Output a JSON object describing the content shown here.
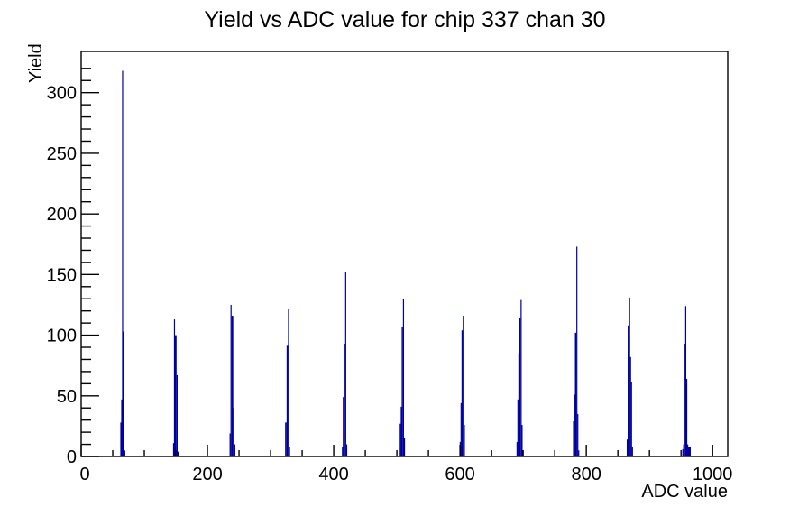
{
  "title": "Yield vs ADC value for chip 337 chan 30",
  "chart_data": {
    "type": "bar",
    "title": "Yield vs ADC value for chip 337 chan 30",
    "xlabel": "ADC value",
    "ylabel": "Yield",
    "xlim": [
      0,
      1024
    ],
    "ylim": [
      0,
      334
    ],
    "x_major_ticks": [
      0,
      200,
      400,
      600,
      800,
      1000
    ],
    "x_minor_tick_step": 50,
    "y_major_ticks": [
      0,
      50,
      100,
      150,
      200,
      250,
      300
    ],
    "y_minor_tick_step": 10,
    "grid": false,
    "legend": false,
    "bar_color": "#0000a0",
    "frame_color": "#000000",
    "peaks_summary": [
      {
        "center": 65,
        "max_height": 318
      },
      {
        "center": 148,
        "max_height": 113
      },
      {
        "center": 238,
        "max_height": 125
      },
      {
        "center": 328,
        "max_height": 122
      },
      {
        "center": 418,
        "max_height": 152
      },
      {
        "center": 510,
        "max_height": 130
      },
      {
        "center": 604,
        "max_height": 116
      },
      {
        "center": 696,
        "max_height": 129
      },
      {
        "center": 784,
        "max_height": 173
      },
      {
        "center": 868,
        "max_height": 131
      },
      {
        "center": 957,
        "max_height": 124
      }
    ],
    "bars": [
      [
        62.0,
        1.4,
        28
      ],
      [
        63.4,
        1.4,
        47
      ],
      [
        64.8,
        1.6,
        318
      ],
      [
        66.4,
        1.8,
        103
      ],
      [
        68.2,
        1.2,
        5
      ],
      [
        145.5,
        1.4,
        11
      ],
      [
        146.9,
        1.6,
        113
      ],
      [
        148.5,
        2.6,
        100
      ],
      [
        151.1,
        1.6,
        67
      ],
      [
        152.7,
        1.4,
        4
      ],
      [
        235.0,
        1.5,
        19
      ],
      [
        236.5,
        1.6,
        125
      ],
      [
        238.1,
        2.8,
        116
      ],
      [
        240.9,
        1.6,
        40
      ],
      [
        242.5,
        1.4,
        10
      ],
      [
        323.0,
        2.4,
        28
      ],
      [
        325.4,
        2.2,
        92
      ],
      [
        327.6,
        1.6,
        122
      ],
      [
        329.2,
        1.4,
        8
      ],
      [
        413.0,
        1.4,
        8
      ],
      [
        414.4,
        1.5,
        49
      ],
      [
        415.9,
        2.2,
        93
      ],
      [
        418.1,
        1.6,
        152
      ],
      [
        419.7,
        1.4,
        10
      ],
      [
        504.5,
        1.6,
        27
      ],
      [
        506.1,
        1.5,
        41
      ],
      [
        507.6,
        2.0,
        107
      ],
      [
        509.6,
        1.6,
        130
      ],
      [
        511.2,
        1.4,
        15
      ],
      [
        599.5,
        1.4,
        12
      ],
      [
        600.9,
        1.5,
        44
      ],
      [
        602.4,
        2.0,
        104
      ],
      [
        604.4,
        1.6,
        116
      ],
      [
        606.0,
        1.5,
        26
      ],
      [
        689.5,
        1.4,
        12
      ],
      [
        690.9,
        1.5,
        47
      ],
      [
        692.4,
        1.5,
        85
      ],
      [
        693.9,
        2.0,
        114
      ],
      [
        695.9,
        1.5,
        129
      ],
      [
        697.4,
        1.5,
        26
      ],
      [
        779.0,
        1.5,
        29
      ],
      [
        780.5,
        1.5,
        51
      ],
      [
        782.0,
        2.2,
        102
      ],
      [
        784.2,
        1.5,
        173
      ],
      [
        785.7,
        1.5,
        35
      ],
      [
        787.2,
        1.3,
        5
      ],
      [
        864.0,
        1.5,
        14
      ],
      [
        865.5,
        2.2,
        108
      ],
      [
        867.7,
        1.5,
        131
      ],
      [
        869.2,
        1.5,
        82
      ],
      [
        870.7,
        1.5,
        61
      ],
      [
        872.2,
        1.3,
        8
      ],
      [
        952.0,
        1.4,
        6
      ],
      [
        953.4,
        1.4,
        10
      ],
      [
        954.8,
        1.8,
        93
      ],
      [
        956.6,
        1.6,
        124
      ],
      [
        958.2,
        1.5,
        64
      ],
      [
        959.7,
        1.2,
        10
      ],
      [
        960.9,
        4.5,
        8
      ]
    ]
  }
}
